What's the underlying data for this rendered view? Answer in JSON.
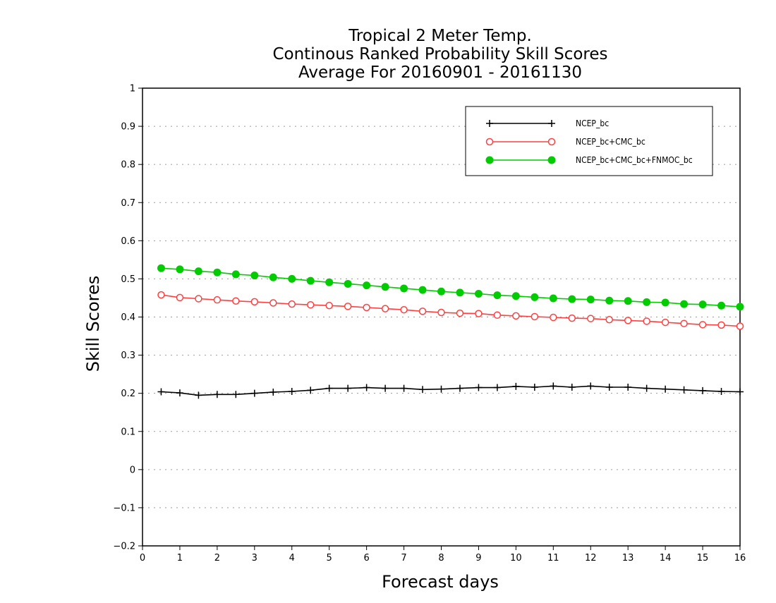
{
  "chart_data": {
    "type": "line",
    "title": [
      "Tropical 2 Meter Temp.",
      "Continous Ranked Probability Skill Scores",
      "Average For 20160901 - 20161130"
    ],
    "xlabel": "Forecast days",
    "ylabel": "Skill Scores",
    "xlim": [
      0,
      16
    ],
    "ylim": [
      -0.2,
      1
    ],
    "x_ticks": [
      0,
      1,
      2,
      3,
      4,
      5,
      6,
      7,
      8,
      9,
      10,
      11,
      12,
      13,
      14,
      15,
      16
    ],
    "x_tick_labels": [
      "0",
      "1",
      "2",
      "3",
      "4",
      "5",
      "6",
      "7",
      "8",
      "9",
      "10",
      "11",
      "12",
      "13",
      "14",
      "15",
      "16"
    ],
    "y_ticks": [
      -0.2,
      -0.1,
      0,
      0.1,
      0.2,
      0.3,
      0.4,
      0.5,
      0.6,
      0.7,
      0.8,
      0.9,
      1
    ],
    "y_tick_labels": [
      "−0.2",
      "−0.1",
      "0",
      "0.1",
      "0.2",
      "0.3",
      "0.4",
      "0.5",
      "0.6",
      "0.7",
      "0.8",
      "0.9",
      "1"
    ],
    "grid": "horizontal-dotted",
    "legend_position": "top-right",
    "x": [
      0.5,
      1.0,
      1.5,
      2.0,
      2.5,
      3.0,
      3.5,
      4.0,
      4.5,
      5.0,
      5.5,
      6.0,
      6.5,
      7.0,
      7.5,
      8.0,
      8.5,
      9.0,
      9.5,
      10.0,
      10.5,
      11.0,
      11.5,
      12.0,
      12.5,
      13.0,
      13.5,
      14.0,
      14.5,
      15.0,
      15.5,
      16.0
    ],
    "series": [
      {
        "name": "NCEP_bc",
        "color": "#000000",
        "marker": "plus",
        "values": [
          0.204,
          0.201,
          0.195,
          0.197,
          0.197,
          0.2,
          0.203,
          0.205,
          0.208,
          0.213,
          0.213,
          0.215,
          0.213,
          0.213,
          0.21,
          0.211,
          0.213,
          0.215,
          0.215,
          0.218,
          0.216,
          0.219,
          0.216,
          0.219,
          0.216,
          0.216,
          0.213,
          0.211,
          0.209,
          0.207,
          0.205,
          0.204
        ]
      },
      {
        "name": "NCEP_bc+CMC_bc",
        "color": "#ff4040",
        "marker": "open-circle",
        "values": [
          0.458,
          0.451,
          0.448,
          0.445,
          0.442,
          0.44,
          0.437,
          0.434,
          0.432,
          0.43,
          0.428,
          0.425,
          0.422,
          0.419,
          0.415,
          0.412,
          0.41,
          0.409,
          0.405,
          0.403,
          0.401,
          0.399,
          0.397,
          0.396,
          0.393,
          0.391,
          0.389,
          0.386,
          0.383,
          0.38,
          0.379,
          0.376
        ]
      },
      {
        "name": "NCEP_bc+CMC_bc+FNMOC_bc",
        "color": "#00cc00",
        "marker": "filled-circle",
        "values": [
          0.528,
          0.525,
          0.52,
          0.517,
          0.512,
          0.509,
          0.504,
          0.5,
          0.495,
          0.491,
          0.487,
          0.483,
          0.479,
          0.475,
          0.471,
          0.467,
          0.464,
          0.461,
          0.457,
          0.455,
          0.452,
          0.449,
          0.447,
          0.446,
          0.443,
          0.442,
          0.439,
          0.438,
          0.434,
          0.433,
          0.43,
          0.427
        ]
      }
    ]
  }
}
